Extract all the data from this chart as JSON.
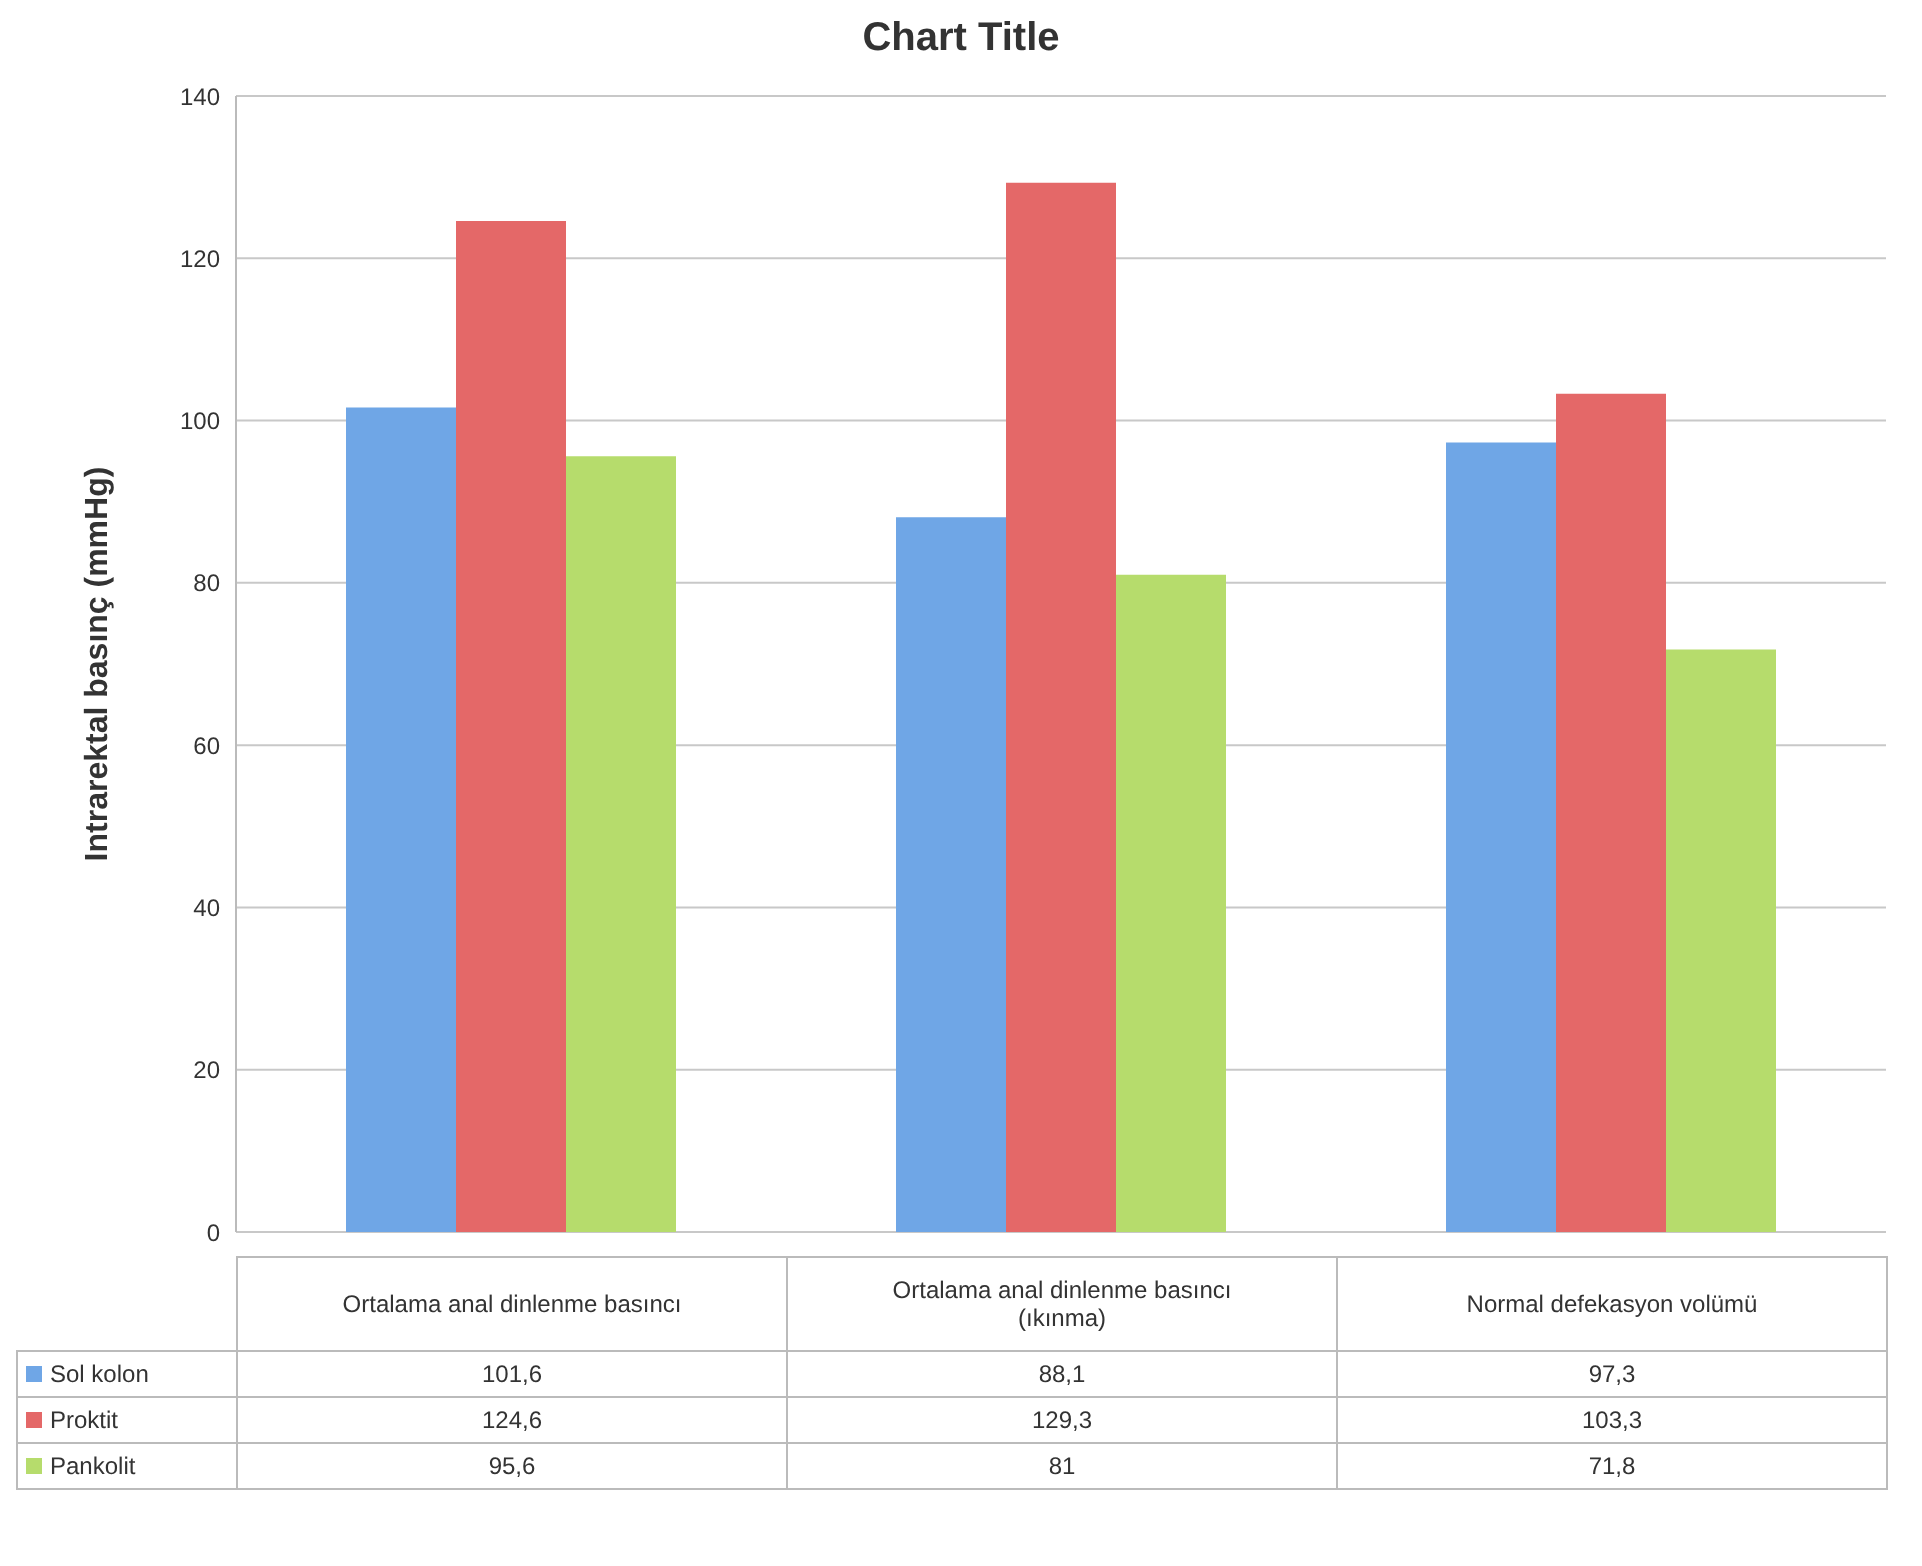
{
  "chart_data": {
    "type": "bar",
    "title": "Chart Title",
    "ylabel": "Intrarektal basınç (mmHg)",
    "categories": [
      "Ortalama anal dinlenme basıncı",
      "Ortalama anal dinlenme basıncı (ıkınma)",
      "Normal defekasyon volümü"
    ],
    "series": [
      {
        "name": "Sol kolon",
        "color": "#6fa6e6",
        "values": [
          101.6,
          88.1,
          97.3
        ],
        "value_labels": [
          "101,6",
          "88,1",
          "97,3"
        ]
      },
      {
        "name": "Proktit",
        "color": "#e46868",
        "values": [
          124.6,
          129.3,
          103.3
        ],
        "value_labels": [
          "124,6",
          "129,3",
          "103,3"
        ]
      },
      {
        "name": "Pankolit",
        "color": "#b6dc6c",
        "values": [
          95.6,
          81,
          71.8
        ],
        "value_labels": [
          "95,6",
          "81",
          "71,8"
        ]
      }
    ],
    "ylim": [
      0,
      140
    ],
    "yticks": [
      0,
      20,
      40,
      60,
      80,
      100,
      120,
      140
    ],
    "grid": "y",
    "legend": "bottom"
  }
}
